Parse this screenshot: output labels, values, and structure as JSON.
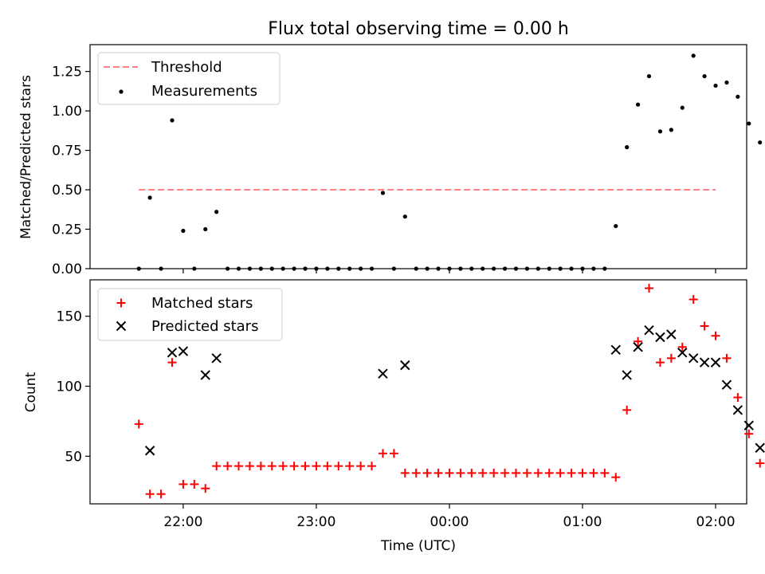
{
  "figure_title": "Flux total observing time = 0.00 h",
  "chart_data": [
    {
      "type": "scatter",
      "panel": "top",
      "title": "Flux total observing time = 0.00 h",
      "xlabel": "",
      "ylabel": "Matched/Predicted stars",
      "xlim": [
        "21:18",
        "02:14"
      ],
      "ylim": [
        0,
        1.42
      ],
      "x_ticks": [
        "22:00",
        "23:00",
        "00:00",
        "01:00",
        "02:00"
      ],
      "y_ticks": [
        "0.00",
        "0.25",
        "0.50",
        "0.75",
        "1.00",
        "1.25"
      ],
      "legend_position": "top-left",
      "threshold": {
        "name": "Threshold",
        "value": 0.5,
        "x_start": "21:40",
        "x_end": "02:00",
        "color": "#ff8080",
        "style": "dashed"
      },
      "series": [
        {
          "name": "Measurements",
          "color": "#000000",
          "marker": "dot",
          "points": [
            [
              "21:40",
              0.0
            ],
            [
              "21:45",
              0.45
            ],
            [
              "21:50",
              0.0
            ],
            [
              "21:55",
              0.94
            ],
            [
              "22:00",
              0.24
            ],
            [
              "22:05",
              0.0
            ],
            [
              "22:10",
              0.25
            ],
            [
              "22:15",
              0.36
            ],
            [
              "22:20",
              0.0
            ],
            [
              "22:25",
              0.0
            ],
            [
              "22:30",
              0.0
            ],
            [
              "22:35",
              0.0
            ],
            [
              "22:40",
              0.0
            ],
            [
              "22:45",
              0.0
            ],
            [
              "22:50",
              0.0
            ],
            [
              "22:55",
              0.0
            ],
            [
              "23:00",
              0.0
            ],
            [
              "23:05",
              0.0
            ],
            [
              "23:10",
              0.0
            ],
            [
              "23:15",
              0.0
            ],
            [
              "23:20",
              0.0
            ],
            [
              "23:25",
              0.0
            ],
            [
              "23:30",
              0.48
            ],
            [
              "23:35",
              0.0
            ],
            [
              "23:40",
              0.33
            ],
            [
              "23:45",
              0.0
            ],
            [
              "23:50",
              0.0
            ],
            [
              "23:55",
              0.0
            ],
            [
              "00:00",
              0.0
            ],
            [
              "00:05",
              0.0
            ],
            [
              "00:10",
              0.0
            ],
            [
              "00:15",
              0.0
            ],
            [
              "00:20",
              0.0
            ],
            [
              "00:25",
              0.0
            ],
            [
              "00:30",
              0.0
            ],
            [
              "00:35",
              0.0
            ],
            [
              "00:40",
              0.0
            ],
            [
              "00:45",
              0.0
            ],
            [
              "00:50",
              0.0
            ],
            [
              "00:55",
              0.0
            ],
            [
              "01:00",
              0.0
            ],
            [
              "01:05",
              0.0
            ],
            [
              "01:10",
              0.0
            ],
            [
              "01:15",
              0.27
            ],
            [
              "01:20",
              0.77
            ],
            [
              "01:25",
              1.04
            ],
            [
              "01:30",
              1.22
            ],
            [
              "01:35",
              0.87
            ],
            [
              "01:40",
              0.88
            ],
            [
              "01:45",
              1.02
            ],
            [
              "01:50",
              1.35
            ],
            [
              "01:55",
              1.22
            ],
            [
              "02:00",
              1.16
            ],
            [
              "02:05",
              1.18
            ],
            [
              "02:10",
              1.09
            ],
            [
              "02:15",
              0.92
            ],
            [
              "02:20",
              0.8
            ]
          ]
        }
      ]
    },
    {
      "type": "scatter",
      "panel": "bottom",
      "xlabel": "Time (UTC)",
      "ylabel": "Count",
      "xlim": [
        "21:18",
        "02:14"
      ],
      "ylim": [
        16,
        176
      ],
      "x_ticks": [
        "22:00",
        "23:00",
        "00:00",
        "01:00",
        "02:00"
      ],
      "y_ticks": [
        "50",
        "100",
        "150"
      ],
      "legend_position": "top-left",
      "series": [
        {
          "name": "Matched stars",
          "color": "#ff0000",
          "marker": "plus",
          "points": [
            [
              "21:40",
              73
            ],
            [
              "21:45",
              23
            ],
            [
              "21:50",
              23
            ],
            [
              "21:55",
              117
            ],
            [
              "22:00",
              30
            ],
            [
              "22:05",
              30
            ],
            [
              "22:10",
              27
            ],
            [
              "22:15",
              43
            ],
            [
              "22:20",
              43
            ],
            [
              "22:25",
              43
            ],
            [
              "22:30",
              43
            ],
            [
              "22:35",
              43
            ],
            [
              "22:40",
              43
            ],
            [
              "22:45",
              43
            ],
            [
              "22:50",
              43
            ],
            [
              "22:55",
              43
            ],
            [
              "23:00",
              43
            ],
            [
              "23:05",
              43
            ],
            [
              "23:10",
              43
            ],
            [
              "23:15",
              43
            ],
            [
              "23:20",
              43
            ],
            [
              "23:25",
              43
            ],
            [
              "23:30",
              52
            ],
            [
              "23:35",
              52
            ],
            [
              "23:40",
              38
            ],
            [
              "23:45",
              38
            ],
            [
              "23:50",
              38
            ],
            [
              "23:55",
              38
            ],
            [
              "00:00",
              38
            ],
            [
              "00:05",
              38
            ],
            [
              "00:10",
              38
            ],
            [
              "00:15",
              38
            ],
            [
              "00:20",
              38
            ],
            [
              "00:25",
              38
            ],
            [
              "00:30",
              38
            ],
            [
              "00:35",
              38
            ],
            [
              "00:40",
              38
            ],
            [
              "00:45",
              38
            ],
            [
              "00:50",
              38
            ],
            [
              "00:55",
              38
            ],
            [
              "01:00",
              38
            ],
            [
              "01:05",
              38
            ],
            [
              "01:10",
              38
            ],
            [
              "01:15",
              35
            ],
            [
              "01:20",
              83
            ],
            [
              "01:25",
              132
            ],
            [
              "01:30",
              170
            ],
            [
              "01:35",
              117
            ],
            [
              "01:40",
              120
            ],
            [
              "01:45",
              128
            ],
            [
              "01:50",
              162
            ],
            [
              "01:55",
              143
            ],
            [
              "02:00",
              136
            ],
            [
              "02:05",
              120
            ],
            [
              "02:10",
              92
            ],
            [
              "02:15",
              66
            ],
            [
              "02:20",
              45
            ]
          ]
        },
        {
          "name": "Predicted stars",
          "color": "#000000",
          "marker": "x",
          "points": [
            [
              "21:45",
              54
            ],
            [
              "21:55",
              124
            ],
            [
              "22:00",
              125
            ],
            [
              "22:10",
              108
            ],
            [
              "22:15",
              120
            ],
            [
              "23:30",
              109
            ],
            [
              "23:40",
              115
            ],
            [
              "01:15",
              126
            ],
            [
              "01:20",
              108
            ],
            [
              "01:25",
              128
            ],
            [
              "01:30",
              140
            ],
            [
              "01:35",
              135
            ],
            [
              "01:40",
              137
            ],
            [
              "01:45",
              124
            ],
            [
              "01:50",
              120
            ],
            [
              "01:55",
              117
            ],
            [
              "02:00",
              117
            ],
            [
              "02:05",
              101
            ],
            [
              "02:10",
              83
            ],
            [
              "02:15",
              72
            ],
            [
              "02:20",
              56
            ]
          ]
        }
      ]
    }
  ]
}
